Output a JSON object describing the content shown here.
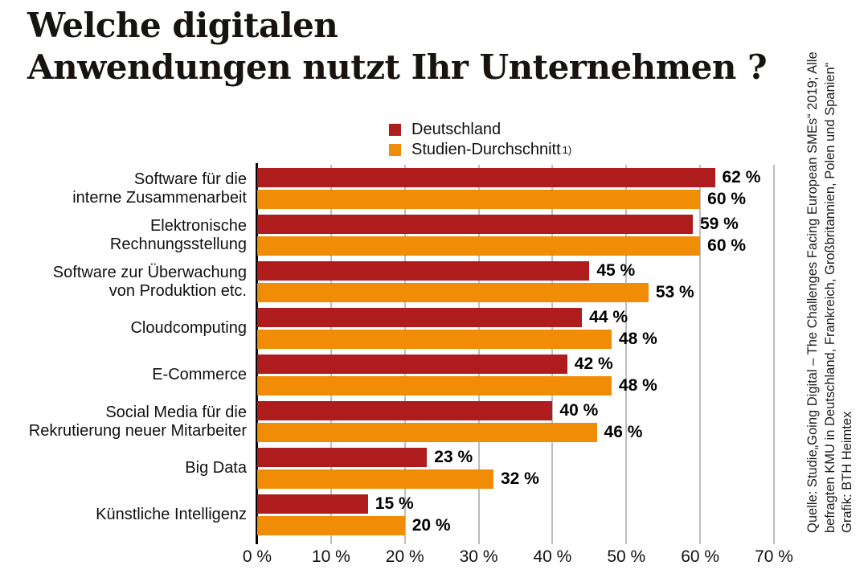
{
  "title": {
    "line1": "Welche digitalen",
    "line2": "Anwendungen nutzt Ihr Unternehmen ?"
  },
  "legend": [
    {
      "label": "Deutschland",
      "color": "#ae1c1e"
    },
    {
      "label": "Studien-Durchschnitt",
      "note_ref": "1)",
      "color": "#f08c05"
    }
  ],
  "chart_data": {
    "type": "bar",
    "orientation": "horizontal",
    "title": "Welche digitalen Anwendungen nutzt Ihr Unternehmen ?",
    "categories": [
      [
        "Software für die",
        "interne Zusammenarbeit"
      ],
      [
        "Elektronische",
        "Rechnungsstellung"
      ],
      [
        "Software zur Überwachung",
        "von Produktion etc."
      ],
      [
        "Cloudcomputing"
      ],
      [
        "E-Commerce"
      ],
      [
        "Social Media für die",
        "Rekrutierung neuer Mitarbeiter"
      ],
      [
        "Big Data"
      ],
      [
        "Künstliche Intelligenz"
      ]
    ],
    "series": [
      {
        "name": "Deutschland",
        "key": "deutschland",
        "color": "#ae1c1e",
        "values": [
          62,
          59,
          45,
          44,
          42,
          40,
          23,
          15
        ]
      },
      {
        "name": "Studien-Durchschnitt",
        "key": "studien-durchschnitt",
        "color": "#f08c05",
        "values": [
          60,
          60,
          53,
          48,
          48,
          46,
          32,
          20
        ]
      }
    ],
    "value_suffix": " %",
    "xlabel": "",
    "ylabel": "",
    "xlim": [
      0,
      70
    ],
    "xticks": [
      0,
      10,
      20,
      30,
      40,
      50,
      60,
      70
    ],
    "xtick_labels": [
      "0 %",
      "10 %",
      "20 %",
      "30 %",
      "40 %",
      "50 %",
      "60 %",
      "70 %"
    ],
    "grid": "vertical",
    "gridline_color": "#bdbdbd",
    "legend_position": "top-center"
  },
  "source": {
    "line1": "Quelle: Studie„Going Digital – The Challenges Facing European SMEs“ 2019; Alle",
    "line2": "befragten KMU in Deutschland, Frankreich, Großbritannien, Polen und Spanien“",
    "line3": "Grafik: BTH Heimtex"
  }
}
